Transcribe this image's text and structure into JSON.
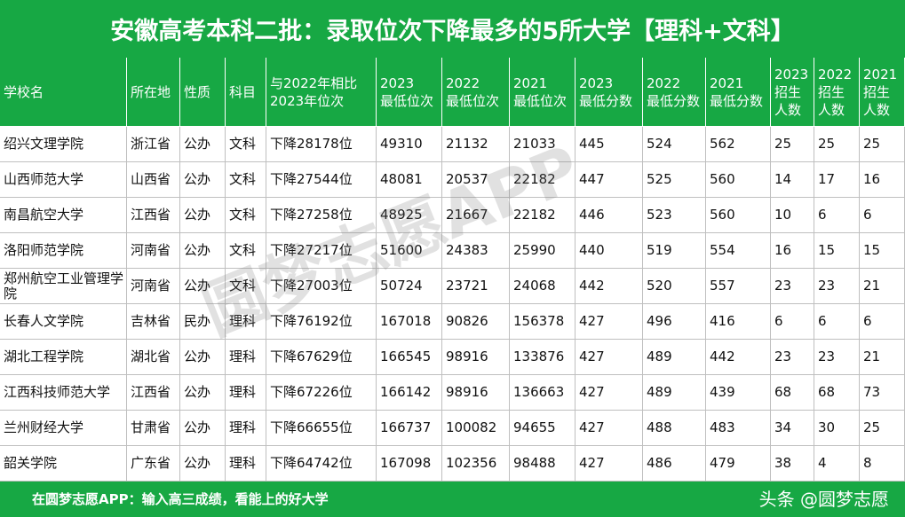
{
  "header": {
    "title": "安徽高考本科二批：录取位次下降最多的5所大学【理科+文科】"
  },
  "table": {
    "columns": [
      [
        "学校名"
      ],
      [
        "所在地"
      ],
      [
        "性质"
      ],
      [
        "科目"
      ],
      [
        "与2022年相比",
        "2023年位次"
      ],
      [
        "2023",
        "最低位次"
      ],
      [
        "2022",
        "最低位次"
      ],
      [
        "2021",
        "最低位次"
      ],
      [
        "2023",
        "最低分数"
      ],
      [
        "2022",
        "最低分数"
      ],
      [
        "2021",
        "最低分数"
      ],
      [
        "2023",
        "招生",
        "人数"
      ],
      [
        "2022",
        "招生",
        "人数"
      ],
      [
        "2021",
        "招生",
        "人数"
      ]
    ],
    "rows": [
      [
        "绍兴文理学院",
        "浙江省",
        "公办",
        "文科",
        "下降28178位",
        "49310",
        "21132",
        "21033",
        "445",
        "524",
        "562",
        "25",
        "25",
        "25"
      ],
      [
        "山西师范大学",
        "山西省",
        "公办",
        "文科",
        "下降27544位",
        "48081",
        "20537",
        "22182",
        "447",
        "525",
        "560",
        "14",
        "17",
        "16"
      ],
      [
        "南昌航空大学",
        "江西省",
        "公办",
        "文科",
        "下降27258位",
        "48925",
        "21667",
        "22182",
        "446",
        "523",
        "560",
        "10",
        "6",
        "6"
      ],
      [
        "洛阳师范学院",
        "河南省",
        "公办",
        "文科",
        "下降27217位",
        "51600",
        "24383",
        "25990",
        "440",
        "519",
        "554",
        "16",
        "15",
        "15"
      ],
      [
        "郑州航空工业管理学院",
        "河南省",
        "公办",
        "文科",
        "下降27003位",
        "50724",
        "23721",
        "24068",
        "442",
        "520",
        "557",
        "23",
        "23",
        "21"
      ],
      [
        "长春人文学院",
        "吉林省",
        "民办",
        "理科",
        "下降76192位",
        "167018",
        "90826",
        "156378",
        "427",
        "496",
        "416",
        "6",
        "6",
        "6"
      ],
      [
        "湖北工程学院",
        "湖北省",
        "公办",
        "理科",
        "下降67629位",
        "166545",
        "98916",
        "133876",
        "427",
        "489",
        "442",
        "23",
        "23",
        "21"
      ],
      [
        "江西科技师范大学",
        "江西省",
        "公办",
        "理科",
        "下降67226位",
        "166142",
        "98916",
        "136663",
        "427",
        "489",
        "439",
        "68",
        "68",
        "73"
      ],
      [
        "兰州财经大学",
        "甘肃省",
        "公办",
        "理科",
        "下降66655位",
        "166737",
        "100082",
        "94655",
        "427",
        "488",
        "483",
        "34",
        "30",
        "25"
      ],
      [
        "韶关学院",
        "广东省",
        "公办",
        "理科",
        "下降64742位",
        "167098",
        "102356",
        "98488",
        "427",
        "486",
        "479",
        "38",
        "4",
        "8"
      ]
    ]
  },
  "watermark": "圆梦志愿APP",
  "footer": {
    "text": "在圆梦志愿APP：输入高三成绩，看能上的好大学",
    "credit": "头条 @圆梦志愿"
  }
}
